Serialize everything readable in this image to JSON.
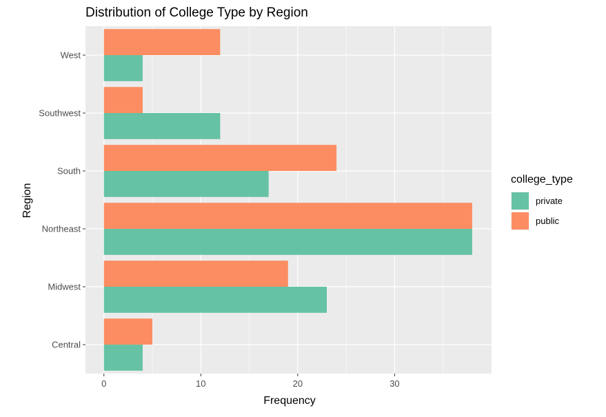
{
  "chart_data": {
    "type": "bar",
    "orientation": "horizontal",
    "title": "Distribution of College Type by Region",
    "xlabel": "Frequency",
    "ylabel": "Region",
    "categories": [
      "Central",
      "Midwest",
      "Northeast",
      "South",
      "Southwest",
      "West"
    ],
    "series": [
      {
        "name": "private",
        "color": "#66c2a5",
        "values": [
          4,
          23,
          38,
          17,
          12,
          4
        ]
      },
      {
        "name": "public",
        "color": "#fc8d62",
        "values": [
          5,
          19,
          38,
          24,
          4,
          12
        ]
      }
    ],
    "xlim": [
      -1.9,
      40
    ],
    "x_ticks": [
      0,
      10,
      20,
      30
    ],
    "legend": {
      "title": "college_type",
      "position": "right"
    },
    "grid": true,
    "panel_background": "#ebebeb",
    "grid_color": "#ffffff"
  }
}
